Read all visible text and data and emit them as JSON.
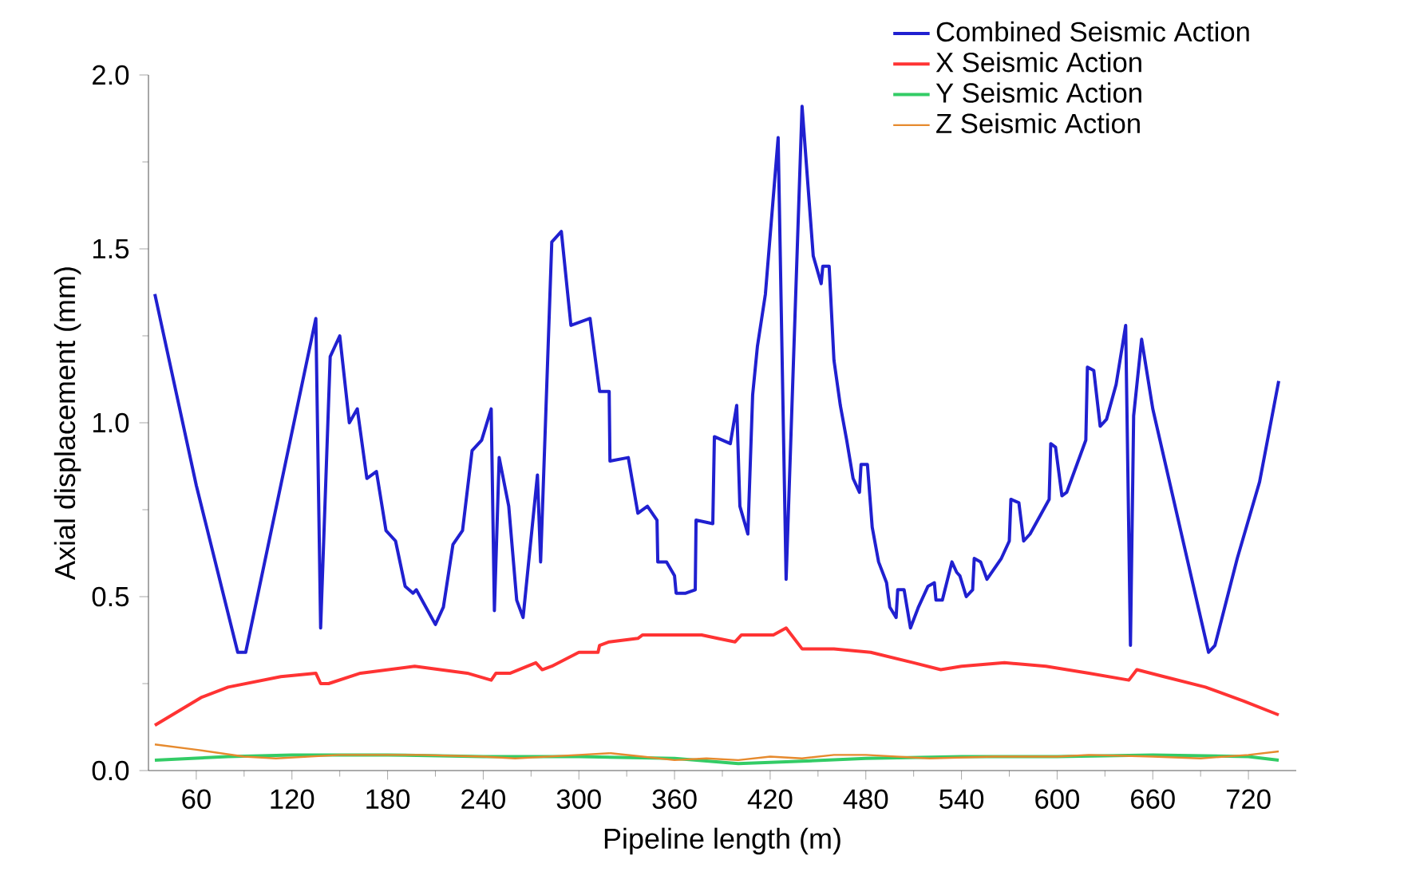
{
  "chart_data": {
    "type": "line",
    "xlabel": "Pipeline length (m)",
    "ylabel": "Axial displacement (mm)",
    "xlim": [
      30,
      750
    ],
    "ylim": [
      0,
      2.0
    ],
    "xticks": [
      60,
      120,
      180,
      240,
      300,
      360,
      420,
      480,
      540,
      600,
      660,
      720
    ],
    "yticks": [
      {
        "value": 0,
        "label": "0.0"
      },
      {
        "value": 0.5,
        "label": "0.5"
      },
      {
        "value": 1.0,
        "label": "1.0"
      },
      {
        "value": 1.5,
        "label": "1.5"
      },
      {
        "value": 2.0,
        "label": "2.0"
      }
    ],
    "legend": "top right",
    "series": [
      {
        "name": "Combined Seismic Action",
        "color": "#2020d0",
        "x": [
          34,
          60,
          86,
          91,
          135,
          138,
          144,
          150,
          156,
          161,
          167,
          173,
          179,
          185,
          191,
          196,
          198,
          210,
          215,
          221,
          227,
          233,
          239,
          245,
          247,
          250,
          256,
          261,
          265,
          274,
          276,
          283,
          289,
          295,
          307,
          313,
          319,
          319.5,
          331,
          337,
          343,
          349,
          349.5,
          355,
          360,
          361,
          367,
          373,
          373.5,
          384,
          385,
          395,
          399,
          401,
          406,
          409,
          412,
          417,
          425,
          430,
          440,
          447,
          452,
          453,
          457,
          460,
          464,
          468,
          472,
          476,
          477,
          481,
          484,
          488,
          493,
          495,
          499,
          500,
          504,
          508,
          513,
          519,
          523,
          524,
          528,
          534,
          537,
          539,
          543,
          547,
          548,
          552,
          556,
          565,
          570,
          571,
          576,
          579,
          583,
          595,
          596,
          599,
          603,
          606,
          618,
          619,
          623,
          627,
          631,
          637,
          643,
          646,
          648,
          653,
          660,
          695,
          699,
          713,
          727,
          739
        ],
        "values": [
          1.37,
          0.82,
          0.34,
          0.34,
          1.3,
          0.41,
          1.19,
          1.25,
          1.0,
          1.04,
          0.84,
          0.86,
          0.69,
          0.66,
          0.53,
          0.51,
          0.52,
          0.42,
          0.47,
          0.65,
          0.69,
          0.92,
          0.95,
          1.04,
          0.46,
          0.9,
          0.76,
          0.49,
          0.44,
          0.85,
          0.6,
          1.52,
          1.55,
          1.28,
          1.3,
          1.09,
          1.09,
          0.89,
          0.9,
          0.74,
          0.76,
          0.72,
          0.6,
          0.6,
          0.56,
          0.51,
          0.51,
          0.52,
          0.72,
          0.71,
          0.96,
          0.94,
          1.05,
          0.76,
          0.68,
          1.08,
          1.22,
          1.37,
          1.82,
          0.55,
          1.91,
          1.48,
          1.4,
          1.45,
          1.45,
          1.18,
          1.05,
          0.95,
          0.84,
          0.8,
          0.88,
          0.88,
          0.7,
          0.6,
          0.54,
          0.47,
          0.44,
          0.52,
          0.52,
          0.41,
          0.47,
          0.53,
          0.54,
          0.49,
          0.49,
          0.6,
          0.57,
          0.56,
          0.5,
          0.52,
          0.61,
          0.6,
          0.55,
          0.61,
          0.66,
          0.78,
          0.77,
          0.66,
          0.68,
          0.78,
          0.94,
          0.93,
          0.79,
          0.8,
          0.95,
          1.16,
          1.15,
          0.99,
          1.01,
          1.11,
          1.28,
          0.36,
          1.02,
          1.24,
          1.04,
          0.34,
          0.36,
          0.61,
          0.83,
          1.12
        ]
      },
      {
        "name": "X Seismic Action",
        "color": "#ff3333",
        "x": [
          34,
          63,
          80,
          113,
          135,
          138,
          143,
          163,
          180,
          197,
          213,
          230,
          245,
          248,
          257,
          273,
          277,
          283,
          300,
          312,
          313,
          319,
          337,
          340,
          360,
          377,
          387,
          398,
          402,
          422,
          430,
          440,
          460,
          483,
          510,
          527,
          540,
          567,
          593,
          620,
          645,
          650,
          667,
          693,
          717,
          739
        ],
        "values": [
          0.13,
          0.21,
          0.24,
          0.27,
          0.28,
          0.25,
          0.25,
          0.28,
          0.29,
          0.3,
          0.29,
          0.28,
          0.26,
          0.28,
          0.28,
          0.31,
          0.29,
          0.3,
          0.34,
          0.34,
          0.36,
          0.37,
          0.38,
          0.39,
          0.39,
          0.39,
          0.38,
          0.37,
          0.39,
          0.39,
          0.41,
          0.35,
          0.35,
          0.34,
          0.31,
          0.29,
          0.3,
          0.31,
          0.3,
          0.28,
          0.26,
          0.29,
          0.27,
          0.24,
          0.2,
          0.16
        ]
      },
      {
        "name": "Y Seismic Action",
        "color": "#33cc66",
        "x": [
          34,
          80,
          120,
          180,
          240,
          300,
          360,
          400,
          430,
          480,
          540,
          600,
          660,
          720,
          739
        ],
        "values": [
          0.03,
          0.04,
          0.045,
          0.045,
          0.04,
          0.04,
          0.035,
          0.02,
          0.025,
          0.035,
          0.04,
          0.04,
          0.045,
          0.04,
          0.03
        ]
      },
      {
        "name": "Z Seismic Action",
        "color": "#e68a2e",
        "x": [
          34,
          60,
          90,
          110,
          150,
          200,
          240,
          260,
          300,
          320,
          340,
          360,
          380,
          400,
          420,
          440,
          460,
          480,
          520,
          560,
          600,
          620,
          660,
          690,
          720,
          739
        ],
        "values": [
          0.075,
          0.06,
          0.04,
          0.035,
          0.045,
          0.045,
          0.04,
          0.035,
          0.045,
          0.05,
          0.04,
          0.03,
          0.035,
          0.03,
          0.04,
          0.035,
          0.045,
          0.045,
          0.035,
          0.04,
          0.04,
          0.045,
          0.04,
          0.035,
          0.045,
          0.055
        ]
      }
    ]
  }
}
